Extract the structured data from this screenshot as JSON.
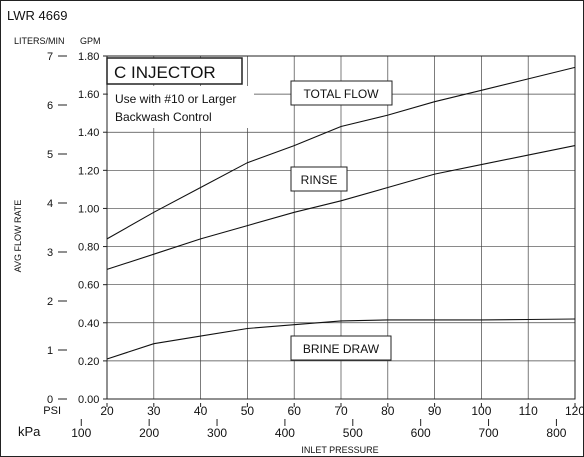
{
  "chart_data": {
    "type": "line",
    "title": "LWR 4669",
    "x_unit_primary": "PSI",
    "x_unit_secondary": "kPa",
    "xlabel": "INLET PRESSURE",
    "ylabel": "AVG FLOW RATE",
    "y_unit_left": "LITERS/MIN",
    "y_unit_right": "GPM",
    "xlim": [
      20,
      120
    ],
    "ylim": [
      0,
      1.8
    ],
    "y_left_lim": [
      0,
      7
    ],
    "grid": true,
    "x_ticks": [
      20,
      30,
      40,
      50,
      60,
      70,
      80,
      90,
      100,
      110,
      120
    ],
    "x_tick_labels": [
      "20",
      "30",
      "40",
      "50",
      "60",
      "70",
      "80",
      "90",
      "100",
      "110",
      "120"
    ],
    "kpa_ticks": [
      100,
      200,
      300,
      400,
      500,
      600,
      700,
      800
    ],
    "kpa_tick_labels": [
      "100",
      "200",
      "300",
      "400",
      "500",
      "600",
      "700",
      "800"
    ],
    "y_ticks": [
      0,
      0.2,
      0.4,
      0.6,
      0.8,
      1.0,
      1.2,
      1.4,
      1.6,
      1.8
    ],
    "y_tick_labels": [
      "0.00",
      "0.20",
      "0.40",
      "0.60",
      "0.80",
      "1.00",
      "1.20",
      "1.40",
      "1.60",
      "1.80"
    ],
    "y_left_ticks": [
      0,
      1,
      2,
      3,
      4,
      5,
      6,
      7
    ],
    "y_left_tick_labels": [
      "0",
      "1",
      "2",
      "3",
      "4",
      "5",
      "6",
      "7"
    ],
    "box_title": "C INJECTOR",
    "box_note_line1": "Use with #10 or Larger",
    "box_note_line2": "Backwash Control",
    "series": [
      {
        "name": "TOTAL FLOW",
        "x": [
          20,
          30,
          40,
          50,
          60,
          70,
          80,
          90,
          100,
          110,
          120
        ],
        "values": [
          0.84,
          0.98,
          1.11,
          1.24,
          1.33,
          1.43,
          1.49,
          1.56,
          1.62,
          1.68,
          1.74
        ]
      },
      {
        "name": "RINSE",
        "x": [
          20,
          30,
          40,
          50,
          60,
          70,
          80,
          90,
          100,
          110,
          120
        ],
        "values": [
          0.68,
          0.76,
          0.84,
          0.91,
          0.98,
          1.04,
          1.11,
          1.18,
          1.23,
          1.28,
          1.33
        ]
      },
      {
        "name": "BRINE DRAW",
        "x": [
          20,
          30,
          40,
          50,
          60,
          70,
          80,
          90,
          100,
          110,
          120
        ],
        "values": [
          0.21,
          0.29,
          0.33,
          0.37,
          0.39,
          0.41,
          0.415,
          0.415,
          0.415,
          0.417,
          0.42
        ]
      }
    ]
  }
}
